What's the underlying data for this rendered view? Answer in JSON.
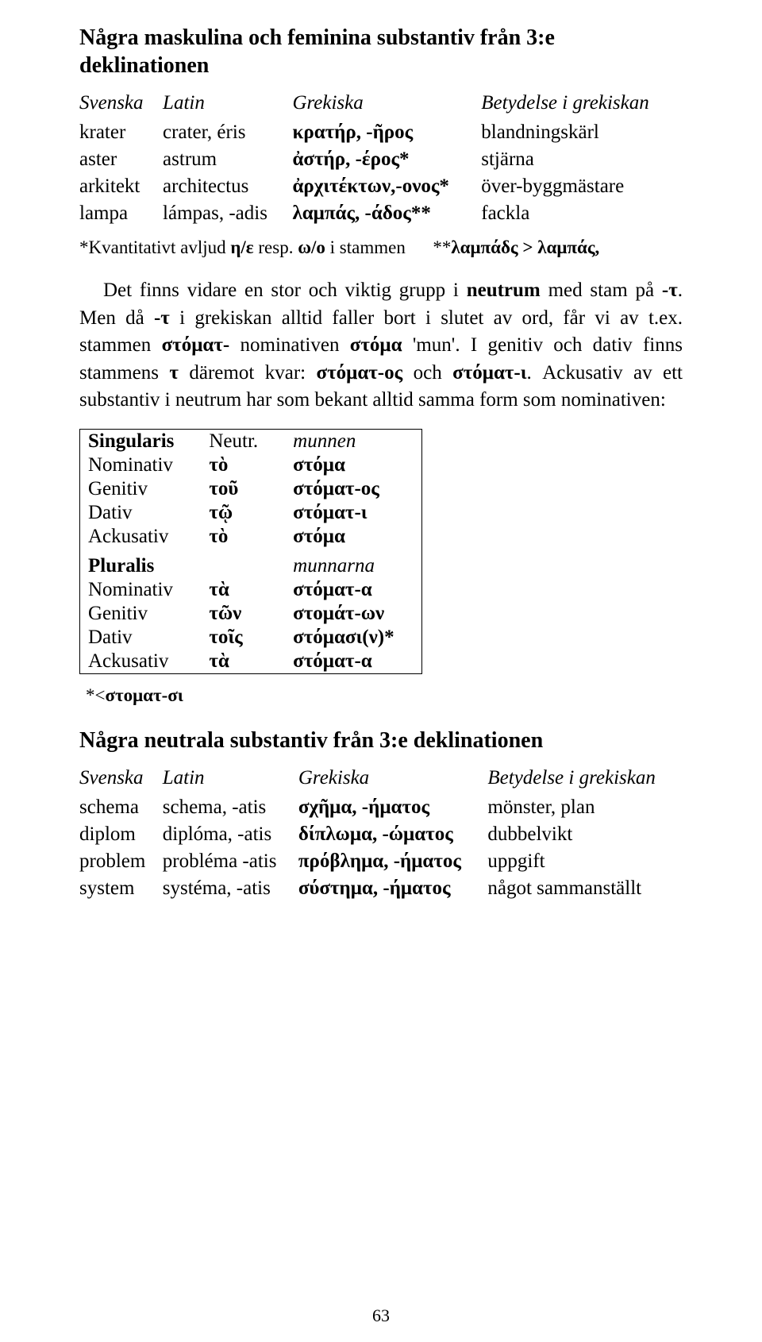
{
  "sectionA": {
    "title": "Några maskulina och feminina substantiv från 3:e deklinationen",
    "headers": {
      "c1": "Svenska",
      "c2": "Latin",
      "c3": "Grekiska",
      "c4": "Betydelse i grekiskan"
    },
    "rows": [
      {
        "sv": "krater",
        "la": "crater, éris",
        "gr": "κρατήρ, -ῆρος",
        "me": "blandningskärl"
      },
      {
        "sv": "aster",
        "la": "astrum",
        "gr": "ἀστήρ, -έρος*",
        "me": "stjärna"
      },
      {
        "sv": "arkitekt",
        "la": "architectus",
        "gr": "ἀρχιτέκτων,-ονος*",
        "me": "över-byggmästare"
      },
      {
        "sv": "lampa",
        "la": "lámpas, -adis",
        "gr": "λαμπάς, -άδος**",
        "me": "fackla"
      }
    ],
    "note_a": "*Kvantitativt avljud ",
    "note_b": "η/ε",
    "note_c": " resp. ",
    "note_d": "ω/ο",
    "note_e": " i stammen",
    "note_f": "**",
    "note_g": "λαμπάδς > λαμπάς,"
  },
  "para": {
    "p1_a": "Det finns vidare en stor och viktig grupp i ",
    "p1_b": "neutrum",
    "p1_c": " med stam på ",
    "p1_d": "-τ",
    "p1_e": ". Men då ",
    "p1_f": "-τ",
    "p1_g": " i grekiskan alltid faller bort i slutet av ord, får vi av t.ex. stammen ",
    "p1_h": "στόματ-",
    "p1_i": " nominativen ",
    "p1_j": "στόμα",
    "p1_k": " 'mun'. I genitiv och dativ finns stammens ",
    "p1_l": "τ",
    "p1_m": " däremot kvar: ",
    "p1_n": "στόματ-ος",
    "p1_o": " och ",
    "p1_p": "στόματ-ι",
    "p1_q": ". Ackusativ av ett substantiv i neutrum har som bekant alltid samma form som nominativen:"
  },
  "declension": {
    "sg_label": "Singularis",
    "neutr_label": "Neutr.",
    "gloss_sg": "munnen",
    "pl_label": "Pluralis",
    "gloss_pl": "munnarna",
    "cases": {
      "nom": "Nominativ",
      "gen": "Genitiv",
      "dat": "Dativ",
      "acc": "Ackusativ"
    },
    "sg": {
      "nom": {
        "art": "τὸ",
        "form": "στόμα"
      },
      "gen": {
        "art": "τοῦ",
        "form": "στόματ-ος"
      },
      "dat": {
        "art": "τῷ",
        "form": "στόματ-ι"
      },
      "acc": {
        "art": "τὸ",
        "form": "στόμα"
      }
    },
    "pl": {
      "nom": {
        "art": "τὰ",
        "form": "στόματ-α"
      },
      "gen": {
        "art": "τῶν",
        "form": "στομάτ-ων"
      },
      "dat": {
        "art": "τοῖς",
        "form": "στόμασι(ν)*"
      },
      "acc": {
        "art": "τὰ",
        "form": "στόματ-α"
      }
    },
    "footnote_a": "*<",
    "footnote_b": "στοματ-σι"
  },
  "sectionB": {
    "title": "Några neutrala substantiv från 3:e deklinationen",
    "headers": {
      "c1": "Svenska",
      "c2": "Latin",
      "c3": "Grekiska",
      "c4": "Betydelse i grekiskan"
    },
    "rows": [
      {
        "sv": "schema",
        "la": "schema, -atis",
        "gr": "σχῆμα, -ήματος",
        "me": "mönster, plan"
      },
      {
        "sv": "diplom",
        "la": "diplóma, -atis",
        "gr": "δίπλωμα, -ώματος",
        "me": "dubbelvikt"
      },
      {
        "sv": "problem",
        "la": "probléma -atis",
        "gr": "πρόβλημα, -ήματος",
        "me": "uppgift"
      },
      {
        "sv": "system",
        "la": "systéma, -atis",
        "gr": "σύστημα, -ήματος",
        "me": "något sammanställt"
      }
    ]
  },
  "pageNumber": "63"
}
